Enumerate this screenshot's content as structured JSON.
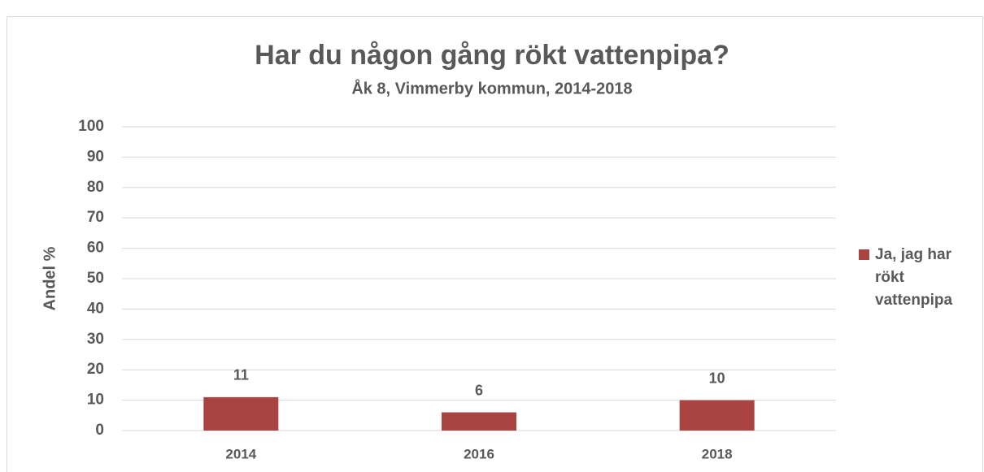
{
  "chart_data": {
    "type": "bar",
    "title": "Har du någon gång rökt vattenpipa?",
    "subtitle": "Åk 8, Vimmerby kommun, 2014-2018",
    "y_label": "Andel %",
    "categories": [
      "2014",
      "2016",
      "2018"
    ],
    "series": [
      {
        "name": "Ja, jag har rökt vattenpipa",
        "color": "#a94442",
        "values": [
          11,
          6,
          10
        ]
      }
    ],
    "ylim": [
      0,
      100
    ],
    "yticks": [
      0,
      10,
      20,
      30,
      40,
      50,
      60,
      70,
      80,
      90,
      100
    ],
    "grid": true,
    "legend": "right"
  }
}
